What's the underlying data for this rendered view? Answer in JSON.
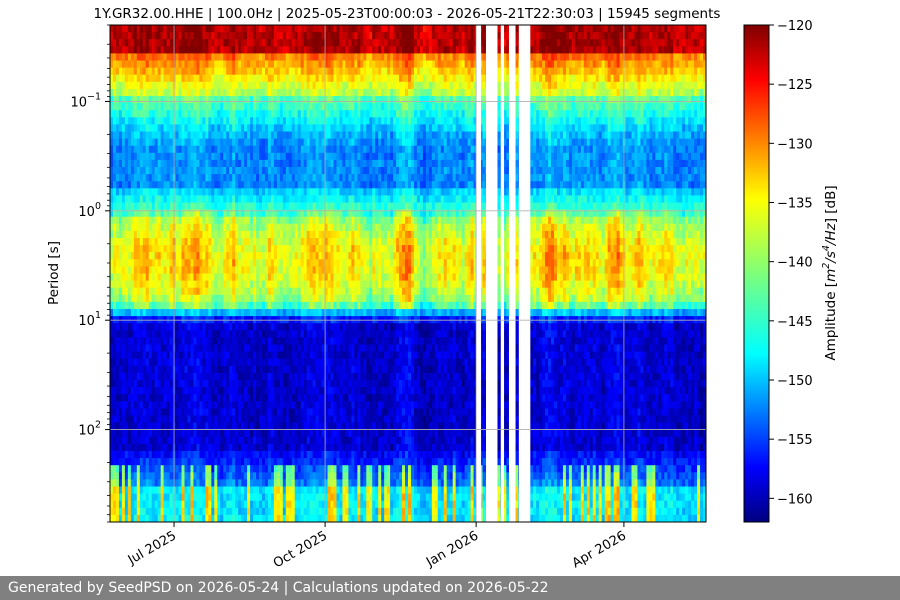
{
  "chart_data": {
    "type": "heatmap",
    "title": "1Y.GR32.00.HHE | 100.0Hz | 2025-05-23T00:00:03 - 2026-05-21T22:30:03 | 15945 segments",
    "ylabel": "Period [s]",
    "y_scale": "log",
    "y_inverted": true,
    "ylim": [
      0.02,
      700
    ],
    "y_ticks": [
      {
        "value": 0.1,
        "label": "10",
        "exp": "−1"
      },
      {
        "value": 1,
        "label": "10",
        "exp": "0"
      },
      {
        "value": 10,
        "label": "10",
        "exp": "1"
      },
      {
        "value": 100,
        "label": "10",
        "exp": "2"
      }
    ],
    "xlim": [
      "2025-05-23",
      "2026-05-21"
    ],
    "x_ticks": [
      {
        "value": "2025-07-01",
        "label": "Jul 2025"
      },
      {
        "value": "2025-10-01",
        "label": "Oct 2025"
      },
      {
        "value": "2026-01-01",
        "label": "Jan 2026"
      },
      {
        "value": "2026-04-01",
        "label": "Apr 2026"
      }
    ],
    "data_gaps": [
      [
        "2026-01-01",
        "2026-01-04"
      ],
      [
        "2026-01-07",
        "2026-01-14"
      ],
      [
        "2026-01-16",
        "2026-01-18"
      ],
      [
        "2026-01-21",
        "2026-01-25"
      ],
      [
        "2026-01-27",
        "2026-02-03"
      ]
    ],
    "colorbar": {
      "label": "Amplitude [m²/s⁴/Hz] [dB]",
      "label_parts": [
        "Amplitude [",
        "m",
        "2",
        "/",
        "s",
        "4",
        "/",
        "Hz",
        "] [dB]"
      ],
      "colormap": "jet",
      "range": [
        -162,
        -120
      ],
      "ticks": [
        -120,
        -125,
        -130,
        -135,
        -140,
        -145,
        -150,
        -155,
        -160
      ]
    },
    "grid": true
  },
  "footer": {
    "text": "Generated by SeedPSD on 2026-05-24 | Calculations updated on 2026-05-22"
  }
}
